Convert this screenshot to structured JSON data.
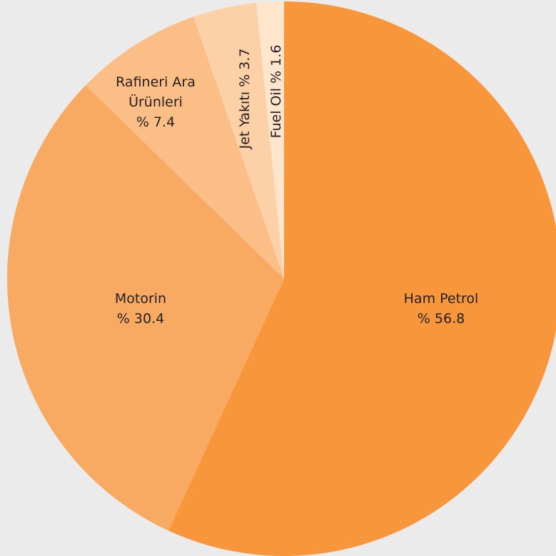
{
  "chart_data": {
    "type": "pie",
    "categories": [
      "Ham Petrol",
      "Motorin",
      "Rafineri Ara Ürünleri",
      "Jet Yakıtı",
      "Fuel Oil"
    ],
    "values": [
      56.8,
      30.4,
      7.4,
      3.7,
      1.6
    ],
    "value_labels": [
      "% 56.8",
      "% 30.4",
      "% 7.4",
      "% 3.7",
      "% 1.6"
    ],
    "colors": [
      "#f7963b",
      "#f9aa62",
      "#fbbe86",
      "#fdd1a8",
      "#fee5cc"
    ]
  }
}
